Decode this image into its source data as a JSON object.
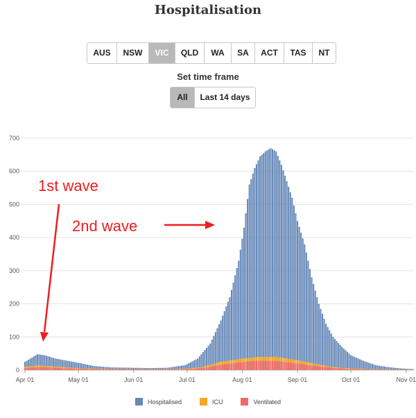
{
  "title": "Hospitalisation",
  "state_buttons": [
    "AUS",
    "NSW",
    "VIC",
    "QLD",
    "WA",
    "SA",
    "ACT",
    "TAS",
    "NT"
  ],
  "active_state": "VIC",
  "time_frame": {
    "label": "Set time frame",
    "options": [
      "All",
      "Last 14 days"
    ],
    "active": "All"
  },
  "colors": {
    "hospitalised": "#6688b8",
    "icu": "#f5a623",
    "ventilated": "#ee6a6a",
    "annotation": "#ee1c1c",
    "grid": "#e3e3e3"
  },
  "annotations": [
    {
      "text": "1st wave"
    },
    {
      "text": "2nd wave"
    }
  ],
  "chart_data": {
    "type": "bar",
    "stacked": false,
    "x_start": "2020-04-01",
    "x_end": "2020-11-05",
    "xticks": [
      "Apr 01",
      "May 01",
      "Jun 01",
      "Jul 01",
      "Aug 01",
      "Sep 01",
      "Oct 01",
      "Nov 01"
    ],
    "xtick_dates": [
      "2020-04-01",
      "2020-05-01",
      "2020-06-01",
      "2020-07-01",
      "2020-08-01",
      "2020-09-01",
      "2020-10-01",
      "2020-11-01"
    ],
    "yticks": [
      0,
      100,
      200,
      300,
      400,
      500,
      600,
      700
    ],
    "ylim": [
      0,
      700
    ],
    "grid": true,
    "legend_position": "bottom",
    "series": [
      {
        "name": "Hospitalised",
        "points": [
          [
            "2020-04-01",
            25
          ],
          [
            "2020-04-05",
            38
          ],
          [
            "2020-04-08",
            48
          ],
          [
            "2020-04-12",
            45
          ],
          [
            "2020-04-18",
            35
          ],
          [
            "2020-04-25",
            28
          ],
          [
            "2020-05-01",
            22
          ],
          [
            "2020-05-10",
            12
          ],
          [
            "2020-05-20",
            8
          ],
          [
            "2020-06-01",
            7
          ],
          [
            "2020-06-10",
            6
          ],
          [
            "2020-06-20",
            7
          ],
          [
            "2020-06-30",
            15
          ],
          [
            "2020-07-07",
            35
          ],
          [
            "2020-07-14",
            80
          ],
          [
            "2020-07-20",
            150
          ],
          [
            "2020-07-25",
            220
          ],
          [
            "2020-07-30",
            330
          ],
          [
            "2020-08-02",
            430
          ],
          [
            "2020-08-05",
            560
          ],
          [
            "2020-08-08",
            610
          ],
          [
            "2020-08-11",
            645
          ],
          [
            "2020-08-14",
            660
          ],
          [
            "2020-08-17",
            670
          ],
          [
            "2020-08-20",
            660
          ],
          [
            "2020-08-23",
            620
          ],
          [
            "2020-08-26",
            570
          ],
          [
            "2020-08-29",
            520
          ],
          [
            "2020-09-01",
            450
          ],
          [
            "2020-09-05",
            380
          ],
          [
            "2020-09-09",
            280
          ],
          [
            "2020-09-13",
            200
          ],
          [
            "2020-09-17",
            140
          ],
          [
            "2020-09-21",
            100
          ],
          [
            "2020-09-26",
            70
          ],
          [
            "2020-10-01",
            45
          ],
          [
            "2020-10-08",
            28
          ],
          [
            "2020-10-15",
            15
          ],
          [
            "2020-10-22",
            9
          ],
          [
            "2020-10-29",
            5
          ],
          [
            "2020-11-05",
            3
          ]
        ]
      },
      {
        "name": "ICU",
        "points": [
          [
            "2020-04-01",
            10
          ],
          [
            "2020-04-08",
            14
          ],
          [
            "2020-04-15",
            12
          ],
          [
            "2020-04-25",
            8
          ],
          [
            "2020-05-05",
            5
          ],
          [
            "2020-05-20",
            3
          ],
          [
            "2020-06-15",
            2
          ],
          [
            "2020-07-01",
            4
          ],
          [
            "2020-07-10",
            10
          ],
          [
            "2020-07-20",
            25
          ],
          [
            "2020-08-01",
            35
          ],
          [
            "2020-08-10",
            40
          ],
          [
            "2020-08-20",
            40
          ],
          [
            "2020-09-01",
            30
          ],
          [
            "2020-09-10",
            20
          ],
          [
            "2020-09-20",
            10
          ],
          [
            "2020-10-01",
            5
          ],
          [
            "2020-10-15",
            2
          ],
          [
            "2020-11-05",
            1
          ]
        ]
      },
      {
        "name": "Ventilated",
        "points": [
          [
            "2020-04-01",
            6
          ],
          [
            "2020-04-08",
            9
          ],
          [
            "2020-04-15",
            8
          ],
          [
            "2020-04-25",
            5
          ],
          [
            "2020-05-05",
            3
          ],
          [
            "2020-05-20",
            2
          ],
          [
            "2020-06-15",
            1
          ],
          [
            "2020-07-01",
            2
          ],
          [
            "2020-07-10",
            6
          ],
          [
            "2020-07-20",
            16
          ],
          [
            "2020-08-01",
            24
          ],
          [
            "2020-08-10",
            28
          ],
          [
            "2020-08-20",
            27
          ],
          [
            "2020-09-01",
            20
          ],
          [
            "2020-09-10",
            13
          ],
          [
            "2020-09-20",
            7
          ],
          [
            "2020-10-01",
            3
          ],
          [
            "2020-10-15",
            1
          ],
          [
            "2020-11-05",
            0
          ]
        ]
      }
    ]
  }
}
